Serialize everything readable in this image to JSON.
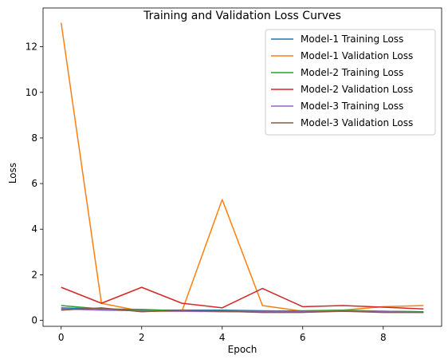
{
  "chart_data": {
    "type": "line",
    "title": "Training and Validation Loss Curves",
    "xlabel": "Epoch",
    "ylabel": "Loss",
    "xlim": [
      -0.45,
      9.45
    ],
    "ylim": [
      -0.26,
      13.7
    ],
    "xticks": [
      0,
      2,
      4,
      6,
      8
    ],
    "yticks": [
      0,
      2,
      4,
      6,
      8,
      10,
      12
    ],
    "grid": false,
    "legend_position": "top-right",
    "x": [
      0,
      1,
      2,
      3,
      4,
      5,
      6,
      7,
      8,
      9
    ],
    "series": [
      {
        "name": "Model-1 Training Loss",
        "color": "#1f77b4",
        "values": [
          0.55,
          0.5,
          0.45,
          0.45,
          0.45,
          0.42,
          0.4,
          0.4,
          0.4,
          0.38
        ]
      },
      {
        "name": "Model-1 Validation Loss",
        "color": "#ff7f0e",
        "values": [
          13.05,
          0.75,
          0.4,
          0.4,
          5.3,
          0.65,
          0.4,
          0.45,
          0.6,
          0.65
        ]
      },
      {
        "name": "Model-2 Training Loss",
        "color": "#2ca02c",
        "values": [
          0.65,
          0.5,
          0.48,
          0.42,
          0.42,
          0.4,
          0.42,
          0.45,
          0.4,
          0.38
        ]
      },
      {
        "name": "Model-2 Validation Loss",
        "color": "#d62728",
        "values": [
          1.45,
          0.75,
          1.45,
          0.75,
          0.55,
          1.4,
          0.6,
          0.65,
          0.58,
          0.5
        ]
      },
      {
        "name": "Model-3 Training Loss",
        "color": "#9467bd",
        "values": [
          0.5,
          0.45,
          0.42,
          0.4,
          0.38,
          0.38,
          0.38,
          0.42,
          0.38,
          0.35
        ]
      },
      {
        "name": "Model-3 Validation Loss",
        "color": "#8c564b",
        "values": [
          0.45,
          0.55,
          0.38,
          0.45,
          0.4,
          0.35,
          0.35,
          0.4,
          0.35,
          0.35
        ]
      }
    ]
  }
}
